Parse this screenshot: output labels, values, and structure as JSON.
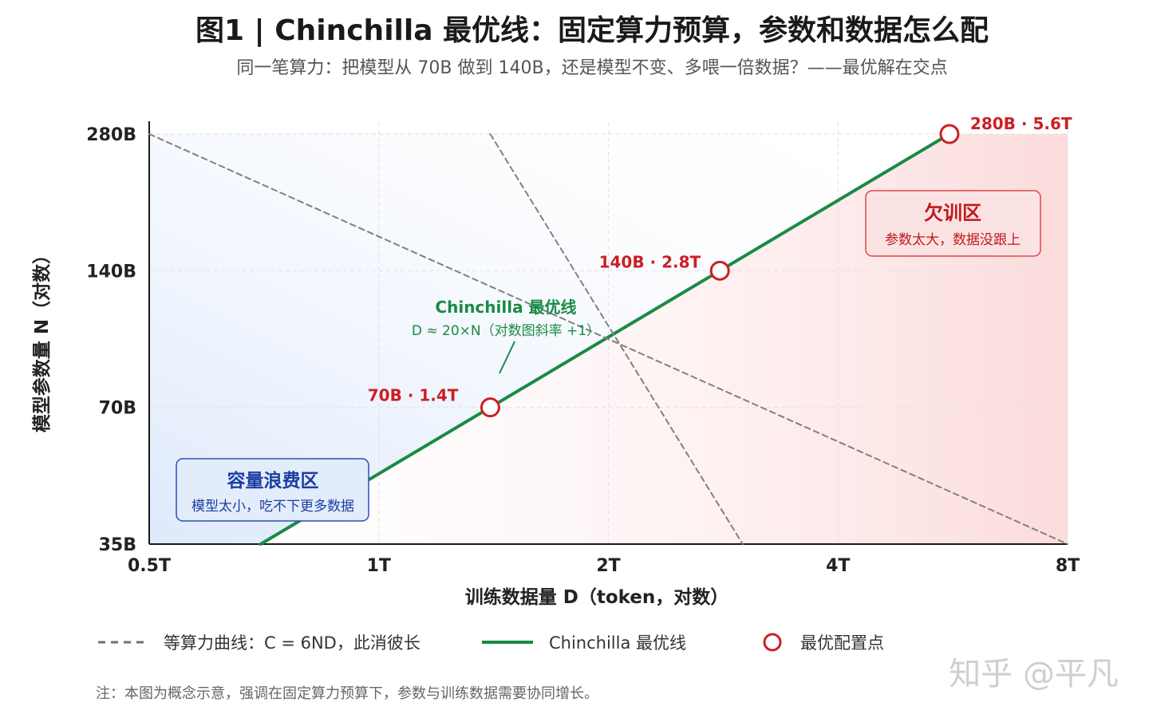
{
  "chart_data": {
    "type": "line",
    "title": "图1 | Chinchilla 最优线：固定算力预算，参数和数据怎么配",
    "subtitle": "同一笔算力：把模型从 70B 做到 140B，还是模型不变、多喂一倍数据？——最优解在交点",
    "xlabel": "训练数据量  D（token，对数）",
    "ylabel": "模型参数量 N（对数）",
    "x_scale": "log2",
    "y_scale": "log2",
    "xlim": [
      0.5,
      8
    ],
    "ylim": [
      35,
      280
    ],
    "x_ticks": [
      0.5,
      1,
      2,
      4,
      8
    ],
    "x_tick_labels": [
      "0.5T",
      "1T",
      "2T",
      "4T",
      "8T"
    ],
    "y_ticks": [
      35,
      70,
      140,
      280
    ],
    "y_tick_labels": [
      "35B",
      "70B",
      "140B",
      "280B"
    ],
    "grid": true,
    "series": [
      {
        "name": "Chinchilla 最优线",
        "style": "solid",
        "color": "#1a8a45",
        "x": [
          0.7,
          5.6
        ],
        "y": [
          35,
          280
        ]
      },
      {
        "name": "等算力曲线：C = 6ND，此消彼长",
        "style": "dashed",
        "color": "#808080",
        "x": [
          0.5,
          8
        ],
        "y": [
          280,
          35
        ]
      },
      {
        "name": "等算力曲线：C = 6ND，此消彼长",
        "style": "dashed",
        "color": "#808080",
        "x": [
          1.4,
          3.0
        ],
        "y": [
          280,
          35
        ]
      }
    ],
    "points": [
      {
        "label": "70B · 1.4T",
        "x": 1.4,
        "y": 70
      },
      {
        "label": "140B · 2.8T",
        "x": 2.8,
        "y": 140
      },
      {
        "label": "280B · 5.6T",
        "x": 5.6,
        "y": 280
      }
    ],
    "annotations": {
      "optimal_line_title": "Chinchilla 最优线",
      "optimal_line_formula": "D ≈ 20×N（对数图斜率 +1）",
      "undertrained_title": "欠训区",
      "undertrained_desc": "参数太大，数据没跟上",
      "waste_title": "容量浪费区",
      "waste_desc": "模型太小，吃不下更多数据"
    },
    "legend": {
      "placement": "bottom",
      "items": [
        {
          "label": "等算力曲线：C = 6ND，此消彼长",
          "kind": "dashed-line"
        },
        {
          "label": "Chinchilla 最优线",
          "kind": "solid-line"
        },
        {
          "label": "最优配置点",
          "kind": "circle-marker"
        }
      ]
    },
    "colors": {
      "optimal": "#1a8a45",
      "isoflop": "#808080",
      "point": "#cc1f24",
      "waste_region": "#dce8fb",
      "undertrained_region": "#fde4e4",
      "waste_text": "#1b3ea0",
      "undertrained_text": "#c0181d"
    }
  },
  "note": "注：本图为概念示意，强调在固定算力预算下，参数与训练数据需要协同增长。",
  "watermark": "知乎 @平凡"
}
